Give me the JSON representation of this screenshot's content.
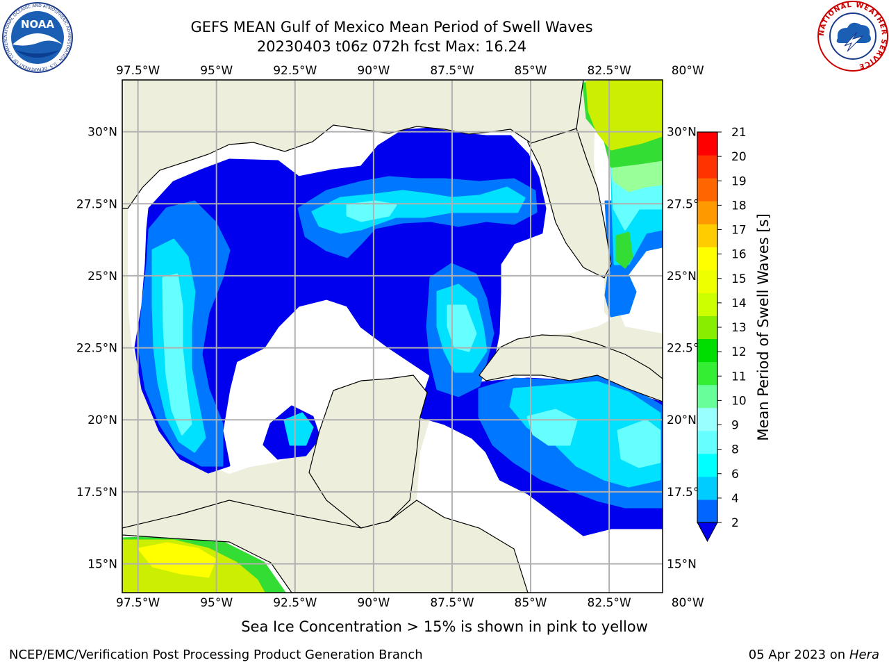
{
  "header": {
    "title_line1": "GEFS MEAN Gulf of Mexico Mean Period of Swell Waves",
    "title_line2": "20230403 t06z 072h fcst   Max: 16.24"
  },
  "logos": {
    "left": "NOAA",
    "left_ring_text": "NATIONAL OCEANIC AND ATMOSPHERIC ADMINISTRATION · U.S. DEPARTMENT OF COMMERCE",
    "right_ring_text": "NATIONAL WEATHER SERVICE"
  },
  "axes": {
    "lon_labels": [
      "97.5°W",
      "95°W",
      "92.5°W",
      "90°W",
      "87.5°W",
      "85°W",
      "82.5°W",
      "80°W"
    ],
    "lat_labels": [
      "30°N",
      "27.5°N",
      "25°N",
      "22.5°N",
      "20°N",
      "17.5°N",
      "15°N"
    ],
    "lon_range": [
      -98,
      -80.8
    ],
    "lat_range": [
      14,
      31.8
    ]
  },
  "colorbar": {
    "label": "Mean Period of Swell Waves [s]",
    "ticks": [
      "2",
      "4",
      "6",
      "8",
      "9",
      "10",
      "11",
      "12",
      "13",
      "14",
      "15",
      "16",
      "17",
      "18",
      "19",
      "20",
      "21"
    ],
    "colors": [
      "#0066ff",
      "#00ccff",
      "#00ffff",
      "#66ffff",
      "#99ffff",
      "#66ff99",
      "#33ee33",
      "#00dd00",
      "#88ee00",
      "#ccff00",
      "#eeff00",
      "#ffff00",
      "#ffcc00",
      "#ff9900",
      "#ff6600",
      "#ff3300",
      "#ff0000"
    ],
    "under_color": "#0000ee"
  },
  "colors": {
    "land": "#eeeedd",
    "grid": "#b0b0b0",
    "level_dark": "#0000ee",
    "level_blue": "#0077ff",
    "level_cyan": "#00e0ff",
    "level_lightcyan": "#66ffff",
    "level_lightgreen": "#99ff99",
    "level_green": "#33dd33",
    "level_yellowgreen": "#ccee00",
    "level_yellow": "#ffff00"
  },
  "footer": {
    "note": "Sea Ice Concentration > 15% is shown in pink to yellow",
    "credit": "NCEP/EMC/Verification Post Processing Product Generation Branch",
    "date": "05 Apr 2023 on",
    "host": "Hera"
  }
}
